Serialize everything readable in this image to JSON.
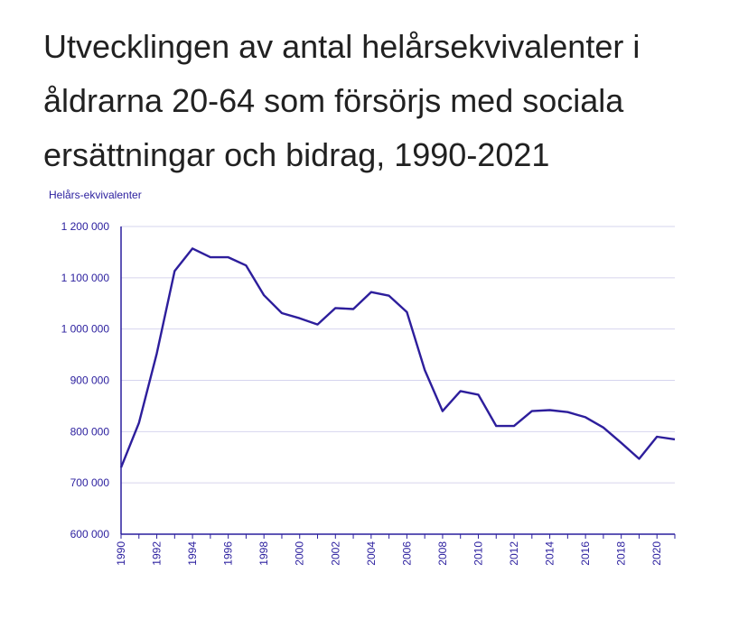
{
  "chart_data": {
    "type": "line",
    "title": "Utvecklingen av antal helårsekvivalenter i åldrarna 20-64 som försörjs med sociala ersättningar och bidrag, 1990-2021",
    "ylabel": "Helårs-ekvivalenter",
    "xlabel": "",
    "ylim": [
      600000,
      1200000
    ],
    "y_ticks": [
      600000,
      700000,
      800000,
      900000,
      1000000,
      1100000,
      1200000
    ],
    "y_tick_labels": [
      "600 000",
      "700 000",
      "800 000",
      "900 000",
      "1 000 000",
      "1 100 000",
      "1 200 000"
    ],
    "x_range": [
      1990,
      2021
    ],
    "x_tick_labels": [
      "1990",
      "1992",
      "1994",
      "1996",
      "1998",
      "2000",
      "2002",
      "2004",
      "2006",
      "2008",
      "2010",
      "2012",
      "2014",
      "2016",
      "2018",
      "2020"
    ],
    "grid": true,
    "line_color": "#2d1e9c",
    "x": [
      1990,
      1991,
      1992,
      1993,
      1994,
      1995,
      1996,
      1997,
      1998,
      1999,
      2000,
      2001,
      2002,
      2003,
      2004,
      2005,
      2006,
      2007,
      2008,
      2009,
      2010,
      2011,
      2012,
      2013,
      2014,
      2015,
      2016,
      2017,
      2018,
      2019,
      2020,
      2021
    ],
    "values": [
      730000,
      817000,
      952000,
      1113000,
      1157000,
      1140000,
      1140000,
      1124000,
      1066000,
      1031000,
      1021000,
      1009000,
      1041000,
      1039000,
      1072000,
      1065000,
      1033000,
      920000,
      840000,
      879000,
      872000,
      811000,
      811000,
      840000,
      842000,
      838000,
      828000,
      808000,
      778000,
      747000,
      790000,
      785000
    ]
  }
}
